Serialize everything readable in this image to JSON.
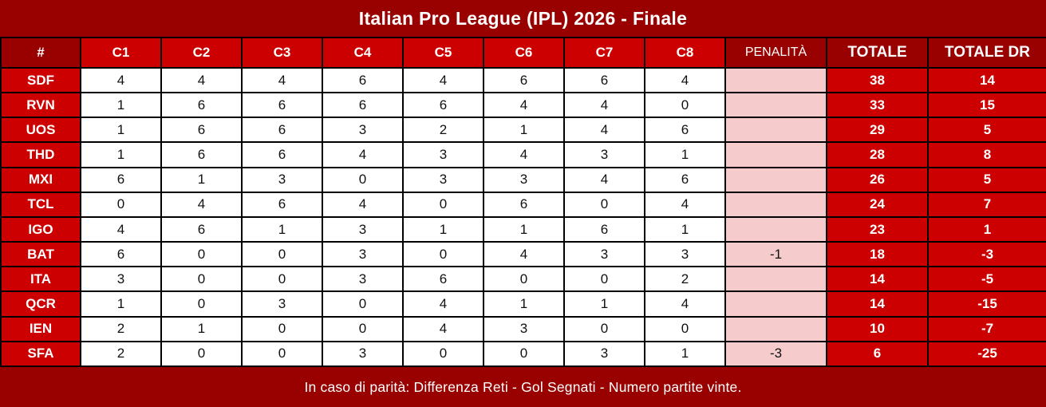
{
  "colors": {
    "header_dark_red": "#990101",
    "cell_bright_red": "#cc0000",
    "penalty_pink": "#f5cbcb",
    "grid_black": "#000000",
    "text_white": "#ffffff",
    "text_black": "#111111"
  },
  "chart_data": {
    "type": "table",
    "title": "Italian Pro League (IPL) 2026 - Finale",
    "note": "In caso di parità: Differenza Reti - Gol Segnati - Numero partite vinte.",
    "columns": [
      "#",
      "C1",
      "C2",
      "C3",
      "C4",
      "C5",
      "C6",
      "C7",
      "C8",
      "PENALITÀ",
      "TOTALE",
      "TOTALE DR"
    ],
    "rows": [
      {
        "team": "SDF",
        "scores": [
          4,
          4,
          4,
          6,
          4,
          6,
          6,
          4
        ],
        "penalty": "",
        "total": 38,
        "dr": 14
      },
      {
        "team": "RVN",
        "scores": [
          1,
          6,
          6,
          6,
          6,
          4,
          4,
          0
        ],
        "penalty": "",
        "total": 33,
        "dr": 15
      },
      {
        "team": "UOS",
        "scores": [
          1,
          6,
          6,
          3,
          2,
          1,
          4,
          6
        ],
        "penalty": "",
        "total": 29,
        "dr": 5
      },
      {
        "team": "THD",
        "scores": [
          1,
          6,
          6,
          4,
          3,
          4,
          3,
          1
        ],
        "penalty": "",
        "total": 28,
        "dr": 8
      },
      {
        "team": "MXI",
        "scores": [
          6,
          1,
          3,
          0,
          3,
          3,
          4,
          6
        ],
        "penalty": "",
        "total": 26,
        "dr": 5
      },
      {
        "team": "TCL",
        "scores": [
          0,
          4,
          6,
          4,
          0,
          6,
          0,
          4
        ],
        "penalty": "",
        "total": 24,
        "dr": 7
      },
      {
        "team": "IGO",
        "scores": [
          4,
          6,
          1,
          3,
          1,
          1,
          6,
          1
        ],
        "penalty": "",
        "total": 23,
        "dr": 1
      },
      {
        "team": "BAT",
        "scores": [
          6,
          0,
          0,
          3,
          0,
          4,
          3,
          3
        ],
        "penalty": "-1",
        "total": 18,
        "dr": -3
      },
      {
        "team": "ITA",
        "scores": [
          3,
          0,
          0,
          3,
          6,
          0,
          0,
          2
        ],
        "penalty": "",
        "total": 14,
        "dr": -5
      },
      {
        "team": "QCR",
        "scores": [
          1,
          0,
          3,
          0,
          4,
          1,
          1,
          4
        ],
        "penalty": "",
        "total": 14,
        "dr": -15
      },
      {
        "team": "IEN",
        "scores": [
          2,
          1,
          0,
          0,
          4,
          3,
          0,
          0
        ],
        "penalty": "",
        "total": 10,
        "dr": -7
      },
      {
        "team": "SFA",
        "scores": [
          2,
          0,
          0,
          3,
          0,
          0,
          3,
          1
        ],
        "penalty": "-3",
        "total": 6,
        "dr": -25
      }
    ]
  }
}
